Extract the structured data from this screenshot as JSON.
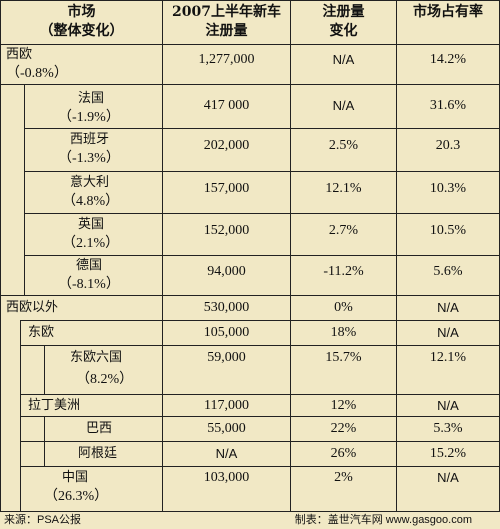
{
  "header": {
    "market_l1": "市场",
    "market_l2": "（整体变化）",
    "reg_l1": "2007上半年新车",
    "reg_l2": "注册量",
    "change_l1": "注册量",
    "change_l2": "变化",
    "share": "市场占有率"
  },
  "rows": [
    {
      "name": "西欧",
      "sub": "（-0.8%）",
      "reg": "1,277,000",
      "change": "N/A",
      "share": "14.2%"
    },
    {
      "name": "法国",
      "sub": "（-1.9%）",
      "reg": "417 000",
      "change": "N/A",
      "share": "31.6%"
    },
    {
      "name": "西班牙",
      "sub": "（-1.3%）",
      "reg": "202,000",
      "change": "2.5%",
      "share": "20.3"
    },
    {
      "name": "意大利",
      "sub": "（4.8%）",
      "reg": "157,000",
      "change": "12.1%",
      "share": "10.3%"
    },
    {
      "name": "英国",
      "sub": "（2.1%）",
      "reg": "152,000",
      "change": "2.7%",
      "share": "10.5%"
    },
    {
      "name": "德国",
      "sub": "（-8.1%）",
      "reg": "94,000",
      "change": "-11.2%",
      "share": "5.6%"
    },
    {
      "name": "西欧以外",
      "sub": "",
      "reg": "530,000",
      "change": "0%",
      "share": "N/A"
    },
    {
      "name": "东欧",
      "sub": "",
      "reg": "105,000",
      "change": "18%",
      "share": "N/A"
    },
    {
      "name": "东欧六国",
      "sub": "（8.2%）",
      "reg": "59,000",
      "change": "15.7%",
      "share": "12.1%"
    },
    {
      "name": "拉丁美洲",
      "sub": "",
      "reg": "117,000",
      "change": "12%",
      "share": "N/A"
    },
    {
      "name": "巴西",
      "sub": "",
      "reg": "55,000",
      "change": "22%",
      "share": "5.3%"
    },
    {
      "name": "阿根廷",
      "sub": "",
      "reg": "N/A",
      "change": "26%",
      "share": "15.2%"
    },
    {
      "name": "中国",
      "sub": "（26.3%）",
      "reg": "103,000",
      "change": "2%",
      "share": "N/A"
    }
  ],
  "footer": {
    "source": "来源：PSA公报",
    "credit": "制表：盖世汽车网 www.gasgoo.com"
  }
}
